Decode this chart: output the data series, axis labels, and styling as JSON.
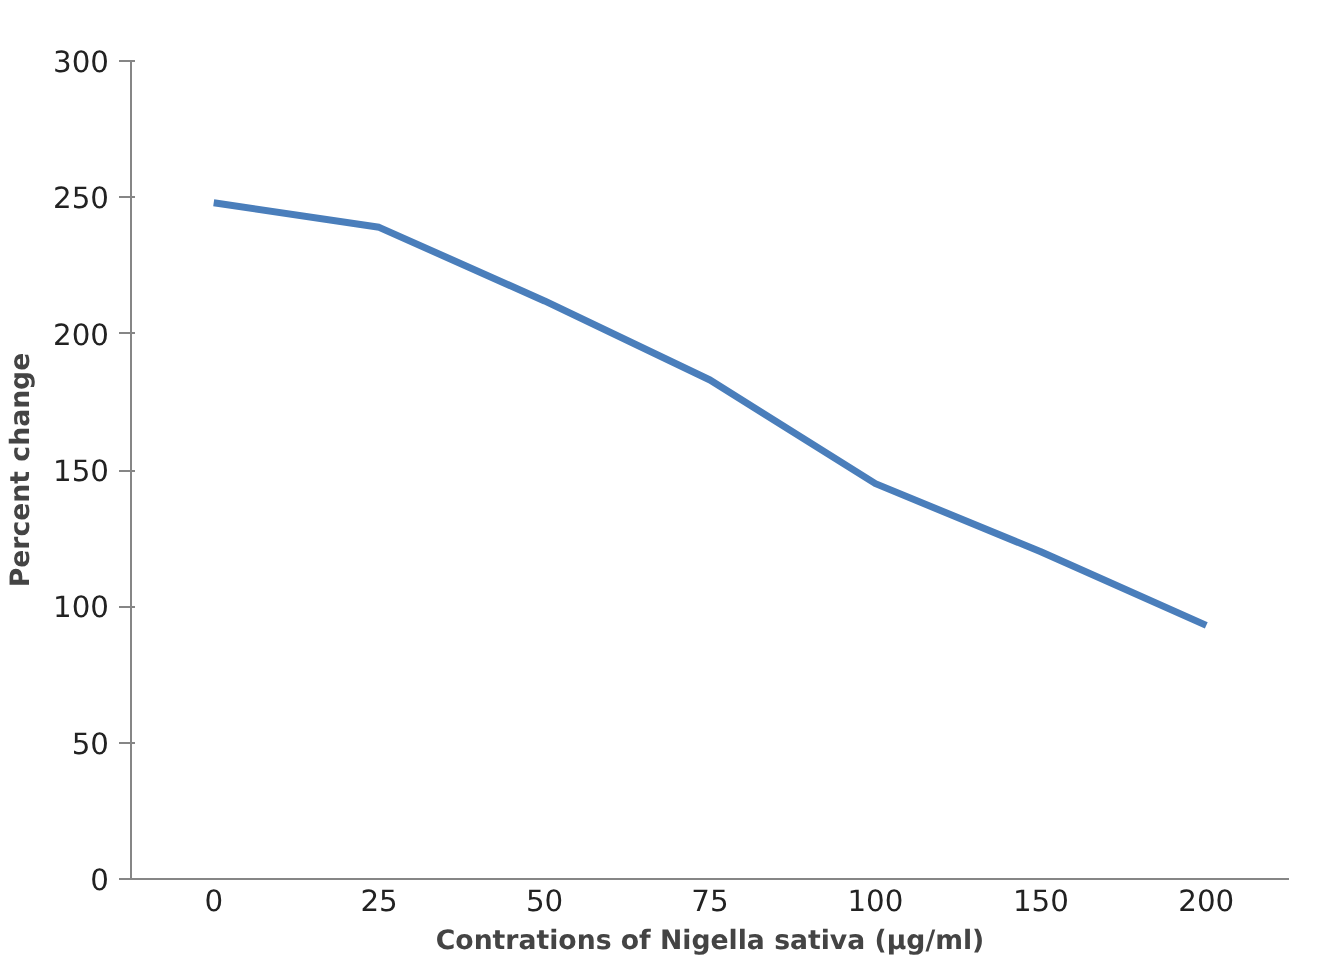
{
  "chart_data": {
    "type": "line",
    "xlabel": "Contrations of Nigella sativa (µg/ml)",
    "ylabel": "Percent change",
    "categories": [
      "0",
      "25",
      "50",
      "75",
      "100",
      "150",
      "200"
    ],
    "series": [
      {
        "color": "#4a7ebb",
        "values": [
          248,
          239,
          212,
          183,
          145,
          120,
          93
        ]
      }
    ],
    "ylim": [
      0,
      300
    ],
    "yticks": [
      0,
      50,
      100,
      150,
      200,
      250,
      300
    ],
    "grid": false,
    "marker": "none",
    "line_style": "solid"
  }
}
